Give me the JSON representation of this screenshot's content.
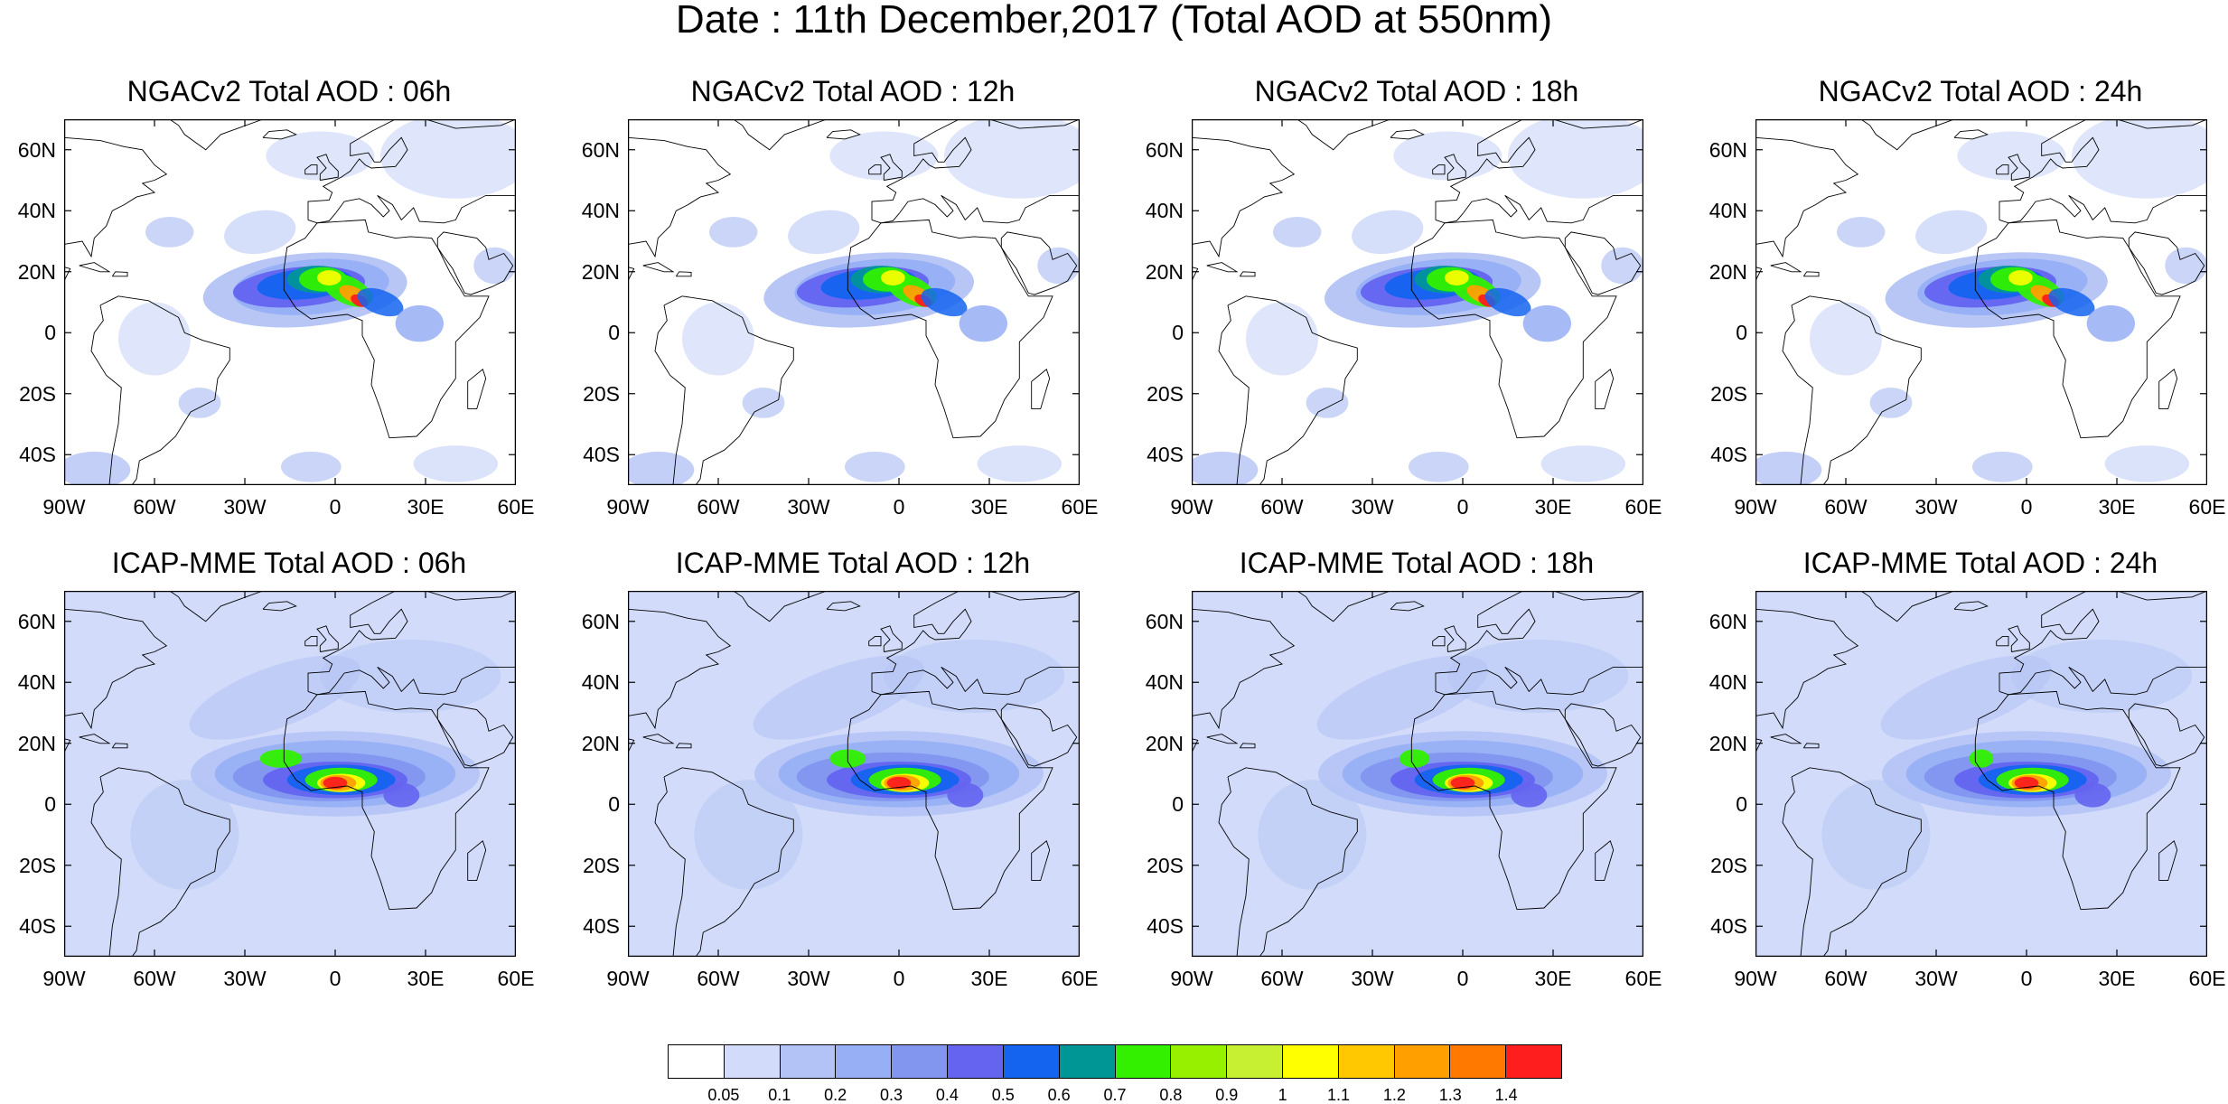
{
  "title": "Date : 11th December,2017 (Total AOD at 550nm)",
  "lat_labels": [
    "60N",
    "40N",
    "20N",
    "0",
    "20S",
    "40S"
  ],
  "lon_labels": [
    "90W",
    "60W",
    "30W",
    "0",
    "30E",
    "60E"
  ],
  "panels": [
    {
      "title": "NGACv2 Total AOD : 06h",
      "model": "NGACv2",
      "hour": "06h"
    },
    {
      "title": "NGACv2 Total AOD : 12h",
      "model": "NGACv2",
      "hour": "12h"
    },
    {
      "title": "NGACv2 Total AOD : 18h",
      "model": "NGACv2",
      "hour": "18h"
    },
    {
      "title": "NGACv2 Total AOD : 24h",
      "model": "NGACv2",
      "hour": "24h"
    },
    {
      "title": "ICAP-MME Total AOD : 06h",
      "model": "ICAP-MME",
      "hour": "06h"
    },
    {
      "title": "ICAP-MME Total AOD : 12h",
      "model": "ICAP-MME",
      "hour": "12h"
    },
    {
      "title": "ICAP-MME Total AOD : 18h",
      "model": "ICAP-MME",
      "hour": "18h"
    },
    {
      "title": "ICAP-MME Total AOD : 24h",
      "model": "ICAP-MME",
      "hour": "24h"
    }
  ],
  "colorbar": {
    "ticks": [
      "0.05",
      "0.1",
      "0.2",
      "0.3",
      "0.4",
      "0.5",
      "0.6",
      "0.7",
      "0.8",
      "0.9",
      "1",
      "1.1",
      "1.2",
      "1.3",
      "1.4"
    ],
    "colors": [
      "#ffffff",
      "#d2dcfa",
      "#b4c3f5",
      "#96aff5",
      "#8296f0",
      "#6464f0",
      "#1464f0",
      "#009696",
      "#32f000",
      "#96f000",
      "#c8f032",
      "#ffff00",
      "#ffc800",
      "#ffa000",
      "#ff7800",
      "#ff1e1e"
    ]
  },
  "map": {
    "domain": {
      "lon": [
        -90,
        60
      ],
      "lat": [
        -50,
        70
      ]
    },
    "ocean_color": "#ffffff",
    "land_outline_color": "#000000"
  }
}
